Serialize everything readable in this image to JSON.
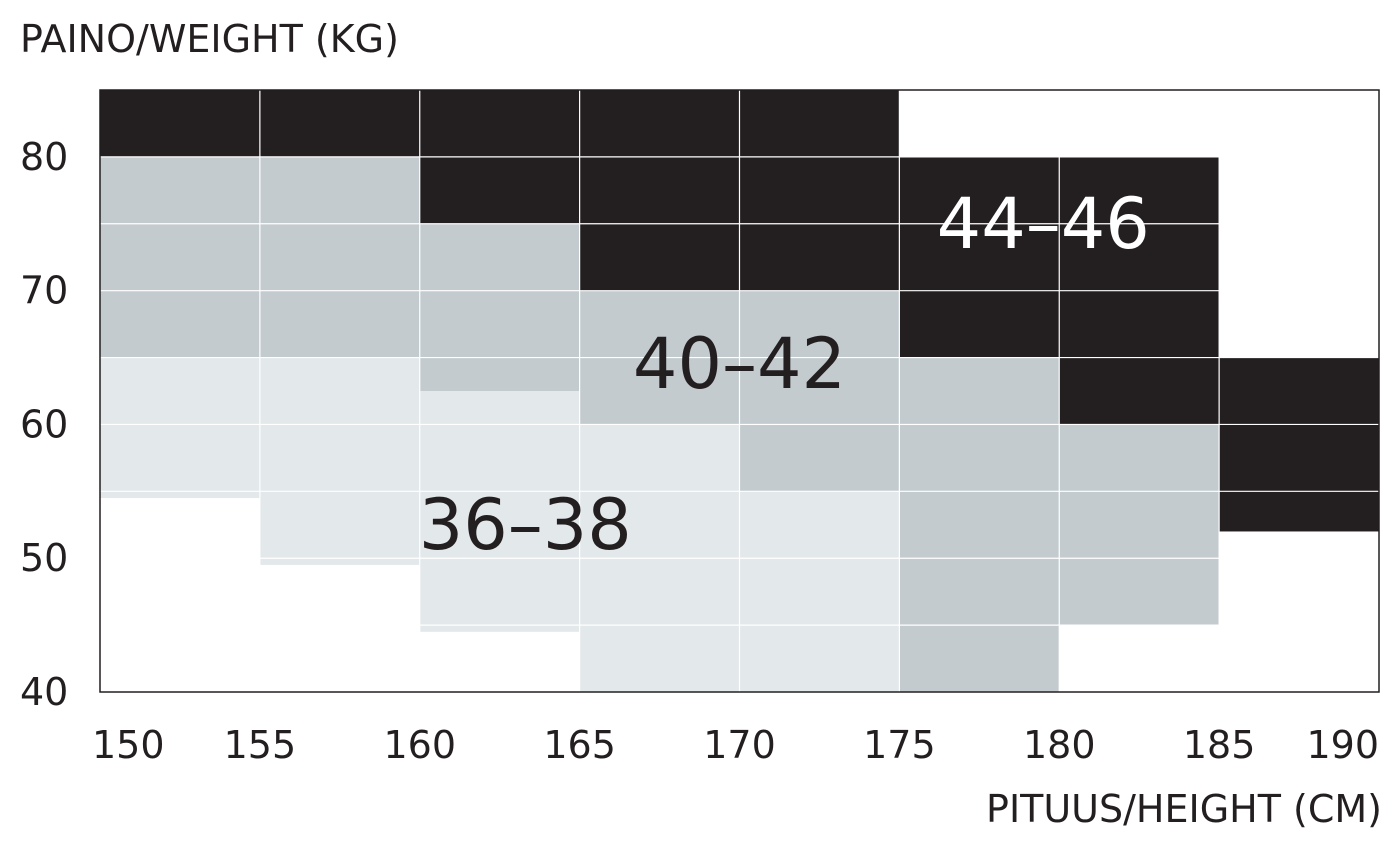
{
  "chart_data": {
    "type": "heatmap",
    "title": "",
    "ylabel": "PAINO/WEIGHT (KG)",
    "xlabel": "PITUUS/HEIGHT (CM)",
    "x_ticks": [
      "150",
      "155",
      "160",
      "165",
      "170",
      "175",
      "180",
      "185",
      "190"
    ],
    "y_ticks": [
      "40",
      "50",
      "60",
      "70",
      "80"
    ],
    "colors": {
      "36–38": "#e3e8eb",
      "40–42": "#c3cbcf",
      "44–46": "#231f20"
    },
    "zones": [
      {
        "label": "36–38",
        "color": "#e3e8eb",
        "label_color": "#231f20",
        "label_at": {
          "height": 163.3,
          "weight": 52.5
        },
        "regions": [
          {
            "height": [
              150,
              155
            ],
            "weight": [
              54.5,
              65
            ]
          },
          {
            "height": [
              155,
              160
            ],
            "weight": [
              49.5,
              65
            ]
          },
          {
            "height": [
              160,
              165
            ],
            "weight": [
              44.5,
              62.5
            ]
          },
          {
            "height": [
              165,
              170
            ],
            "weight": [
              40,
              60
            ]
          },
          {
            "height": [
              170,
              175
            ],
            "weight": [
              40,
              55
            ]
          }
        ]
      },
      {
        "label": "40–42",
        "color": "#c3cbcf",
        "label_color": "#231f20",
        "label_at": {
          "height": 170,
          "weight": 64.5
        },
        "regions": [
          {
            "height": [
              150,
              160
            ],
            "weight": [
              65,
              80
            ]
          },
          {
            "height": [
              160,
              165
            ],
            "weight": [
              62.5,
              75
            ]
          },
          {
            "height": [
              165,
              175
            ],
            "weight": [
              60,
              70
            ]
          },
          {
            "height": [
              170,
              175
            ],
            "weight": [
              55,
              60
            ]
          },
          {
            "height": [
              175,
              180
            ],
            "weight": [
              40,
              65
            ]
          },
          {
            "height": [
              180,
              185
            ],
            "weight": [
              45,
              60
            ]
          }
        ]
      },
      {
        "label": "44–46",
        "color": "#231f20",
        "label_color": "#ffffff",
        "label_at": {
          "height": 179.5,
          "weight": 75
        },
        "regions": [
          {
            "height": [
              150,
              160
            ],
            "weight": [
              80,
              85
            ]
          },
          {
            "height": [
              160,
              165
            ],
            "weight": [
              75,
              85
            ]
          },
          {
            "height": [
              165,
              175
            ],
            "weight": [
              70,
              85
            ]
          },
          {
            "height": [
              175,
              185
            ],
            "weight": [
              65,
              80
            ]
          },
          {
            "height": [
              180,
              185
            ],
            "weight": [
              60,
              65
            ]
          },
          {
            "height": [
              185,
              190
            ],
            "weight": [
              52,
              65
            ]
          }
        ]
      }
    ],
    "grid": true,
    "legend": "none"
  }
}
